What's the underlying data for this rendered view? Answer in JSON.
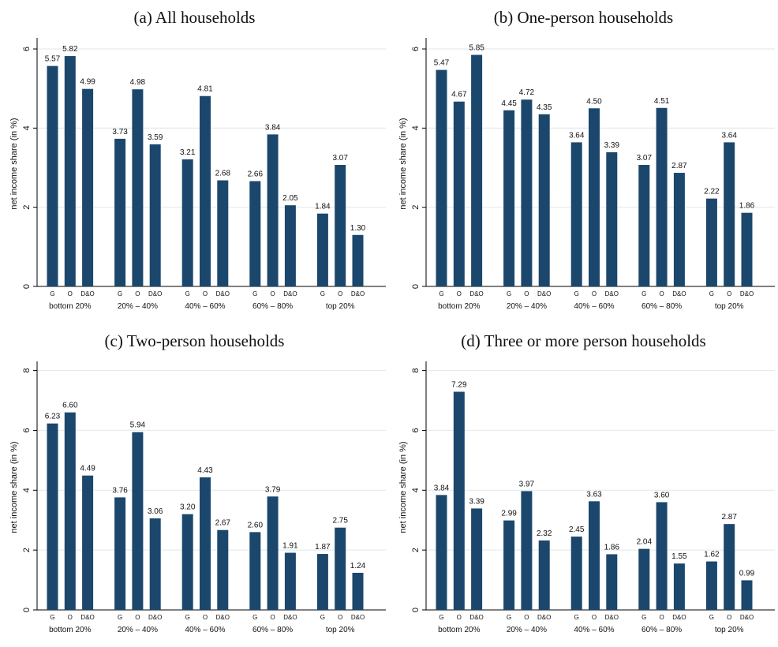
{
  "colors": {
    "bar": "#1b476d",
    "grid": "#e3ecef",
    "axis": "#000000"
  },
  "chart_data": [
    {
      "type": "bar",
      "title": "(a) All households",
      "ylabel": "net income share (in %)",
      "ylim": [
        0,
        6.2
      ],
      "yticks": [
        0,
        2,
        4,
        6
      ],
      "groups": [
        "bottom 20%",
        "20% – 40%",
        "40% – 60%",
        "60% – 80%",
        "top 20%"
      ],
      "series_labels": [
        "G",
        "O",
        "D&O"
      ],
      "values": [
        [
          5.57,
          5.82,
          4.99
        ],
        [
          3.73,
          4.98,
          3.59
        ],
        [
          3.21,
          4.81,
          2.68
        ],
        [
          2.66,
          3.84,
          2.05
        ],
        [
          1.84,
          3.07,
          1.3
        ]
      ],
      "value_labels": [
        [
          "5.57",
          "5.82",
          "4.99"
        ],
        [
          "3.73",
          "4.98",
          "3.59"
        ],
        [
          "3.21",
          "4.81",
          "2.68"
        ],
        [
          "2.66",
          "3.84",
          "2.05"
        ],
        [
          "1.84",
          "3.07",
          "1.30"
        ]
      ]
    },
    {
      "type": "bar",
      "title": "(b) One-person households",
      "ylabel": "net income share (in %)",
      "ylim": [
        0,
        6.2
      ],
      "yticks": [
        0,
        2,
        4,
        6
      ],
      "groups": [
        "bottom 20%",
        "20% – 40%",
        "40% – 60%",
        "60% – 80%",
        "top 20%"
      ],
      "series_labels": [
        "G",
        "O",
        "D&O"
      ],
      "values": [
        [
          5.47,
          4.67,
          5.85
        ],
        [
          4.45,
          4.72,
          4.35
        ],
        [
          3.64,
          4.5,
          3.39
        ],
        [
          3.07,
          4.51,
          2.87
        ],
        [
          2.22,
          3.64,
          1.86
        ]
      ],
      "value_labels": [
        [
          "5.47",
          "4.67",
          "5.85"
        ],
        [
          "4.45",
          "4.72",
          "4.35"
        ],
        [
          "3.64",
          "4.50",
          "3.39"
        ],
        [
          "3.07",
          "4.51",
          "2.87"
        ],
        [
          "2.22",
          "3.64",
          "1.86"
        ]
      ]
    },
    {
      "type": "bar",
      "title": "(c) Two-person households",
      "ylabel": "net income share (in %)",
      "ylim": [
        0,
        8.2
      ],
      "yticks": [
        0,
        2,
        4,
        6,
        8
      ],
      "groups": [
        "bottom 20%",
        "20% – 40%",
        "40% – 60%",
        "60% – 80%",
        "top 20%"
      ],
      "series_labels": [
        "G",
        "O",
        "D&O"
      ],
      "values": [
        [
          6.23,
          6.6,
          4.49
        ],
        [
          3.76,
          5.94,
          3.06
        ],
        [
          3.2,
          4.43,
          2.67
        ],
        [
          2.6,
          3.79,
          1.91
        ],
        [
          1.87,
          2.75,
          1.24
        ]
      ],
      "value_labels": [
        [
          "6.23",
          "6.60",
          "4.49"
        ],
        [
          "3.76",
          "5.94",
          "3.06"
        ],
        [
          "3.20",
          "4.43",
          "2.67"
        ],
        [
          "2.60",
          "3.79",
          "1.91"
        ],
        [
          "1.87",
          "2.75",
          "1.24"
        ]
      ]
    },
    {
      "type": "bar",
      "title": "(d) Three or more person households",
      "ylabel": "net income share (in %)",
      "ylim": [
        0,
        8.2
      ],
      "yticks": [
        0,
        2,
        4,
        6,
        8
      ],
      "groups": [
        "bottom 20%",
        "20% – 40%",
        "40% – 60%",
        "60% – 80%",
        "top 20%"
      ],
      "series_labels": [
        "G",
        "O",
        "D&O"
      ],
      "values": [
        [
          3.84,
          7.29,
          3.39
        ],
        [
          2.99,
          3.97,
          2.32
        ],
        [
          2.45,
          3.63,
          1.86
        ],
        [
          2.04,
          3.6,
          1.55
        ],
        [
          1.62,
          2.87,
          0.99
        ]
      ],
      "value_labels": [
        [
          "3.84",
          "7.29",
          "3.39"
        ],
        [
          "2.99",
          "3.97",
          "2.32"
        ],
        [
          "2.45",
          "3.63",
          "1.86"
        ],
        [
          "2.04",
          "3.60",
          "1.55"
        ],
        [
          "1.62",
          "2.87",
          "0.99"
        ]
      ]
    }
  ]
}
